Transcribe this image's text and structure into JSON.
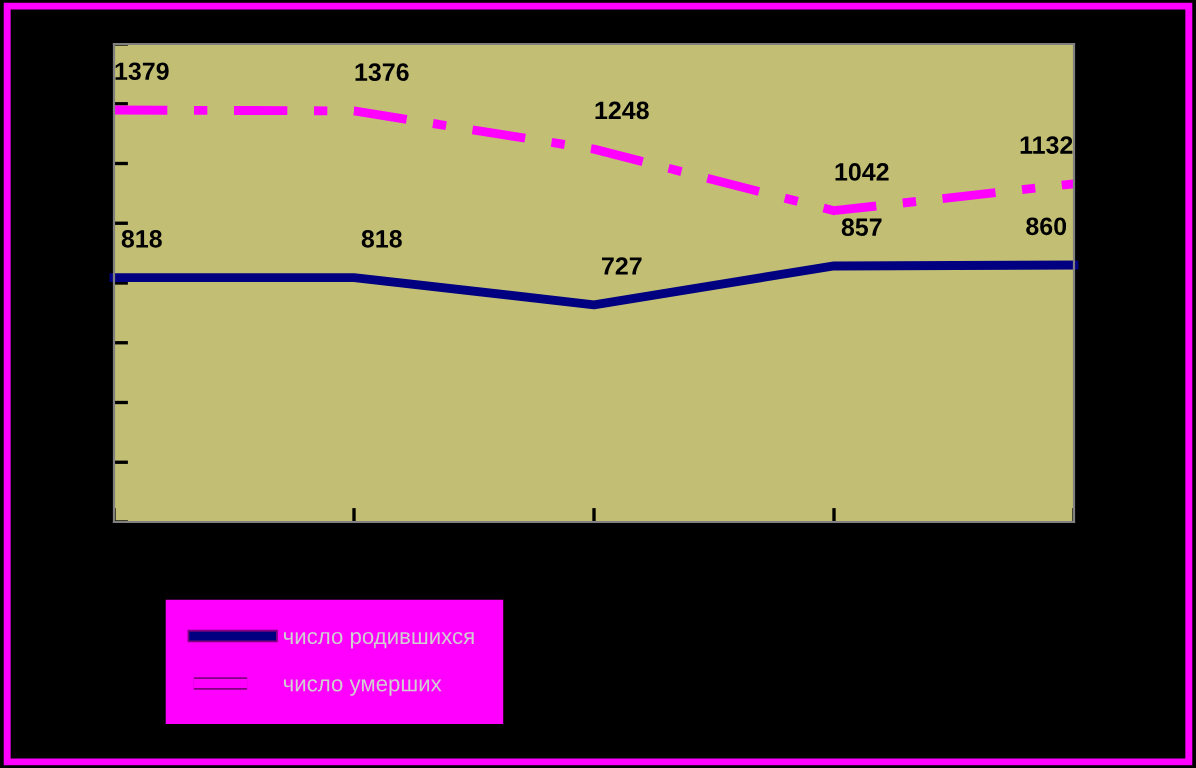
{
  "chart_data": {
    "type": "line",
    "categories": [
      null,
      null,
      null,
      null,
      null
    ],
    "series": [
      {
        "name": "число родившихся",
        "color": "#000080",
        "line_style": "solid",
        "values": [
          818,
          818,
          727,
          857,
          860
        ]
      },
      {
        "name": "число умерших",
        "color": "#ff00ff",
        "line_style": "dashed",
        "values": [
          1379,
          1376,
          1248,
          1042,
          1132
        ]
      }
    ],
    "ylim": [
      0,
      1600
    ],
    "yticks": [
      {
        "value": 0,
        "label": null
      },
      {
        "value": 200,
        "label": null
      },
      {
        "value": 400,
        "label": null
      },
      {
        "value": 600,
        "label": null
      },
      {
        "value": 800,
        "label": null
      },
      {
        "value": 1000,
        "label": null
      },
      {
        "value": 1200,
        "label": null
      },
      {
        "value": 1400,
        "label": null
      },
      {
        "value": 1600,
        "label": null
      }
    ],
    "data_labels": true,
    "grid": false,
    "legend": "bottom left",
    "marker": "none"
  }
}
